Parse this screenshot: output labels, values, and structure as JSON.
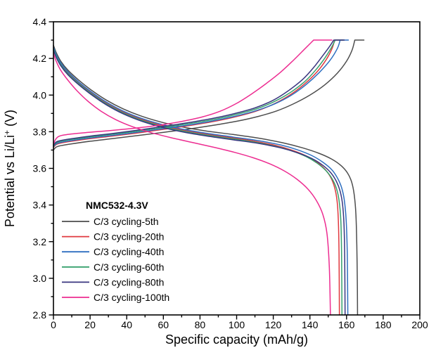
{
  "chart_data": {
    "type": "line",
    "legend_title": "NMC532-4.3V",
    "xlabel": "Specific capacity (mAh/g)",
    "ylabel": "Potential vs Li/Li⁺ (V)",
    "ylabel_parts": {
      "prefix": "Potential vs Li/Li",
      "sup": "+",
      "suffix": " (V)"
    },
    "xlim": [
      0,
      200
    ],
    "ylim": [
      2.8,
      4.4
    ],
    "x_major_ticks": [
      0,
      20,
      40,
      60,
      80,
      100,
      120,
      140,
      160,
      180,
      200
    ],
    "x_tick_labels": [
      "0",
      "20",
      "40",
      "60",
      "80",
      "100",
      "120",
      "140",
      "160",
      "180",
      "200"
    ],
    "x_minor_step": 10,
    "y_major_ticks": [
      2.8,
      3.0,
      3.2,
      3.4,
      3.6,
      3.8,
      4.0,
      4.2,
      4.4
    ],
    "y_tick_labels": [
      "2.8",
      "3.0",
      "3.2",
      "3.4",
      "3.6",
      "3.8",
      "4.0",
      "4.2",
      "4.4"
    ],
    "y_minor_step": 0.1,
    "grid": false,
    "legend_position": "lower-left",
    "voltage_cutoffs_V": [
      2.8,
      4.3
    ],
    "series": [
      {
        "name": "C/3 cycling-5th",
        "color": "#4d4d4d",
        "charge_mAh_g_V": [
          [
            0,
            3.7
          ],
          [
            1.5,
            3.716
          ],
          [
            4,
            3.724
          ],
          [
            10,
            3.734
          ],
          [
            20,
            3.748
          ],
          [
            32,
            3.762
          ],
          [
            45,
            3.778
          ],
          [
            58,
            3.794
          ],
          [
            72,
            3.812
          ],
          [
            86,
            3.833
          ],
          [
            100,
            3.857
          ],
          [
            112,
            3.884
          ],
          [
            122,
            3.914
          ],
          [
            131,
            3.952
          ],
          [
            140,
            4.0
          ],
          [
            148,
            4.055
          ],
          [
            155,
            4.12
          ],
          [
            160,
            4.185
          ],
          [
            163,
            4.245
          ],
          [
            164.5,
            4.3
          ],
          [
            169.5,
            4.3
          ]
        ],
        "discharge_mAh_g_V": [
          [
            0,
            4.272
          ],
          [
            1.5,
            4.232
          ],
          [
            4,
            4.185
          ],
          [
            8,
            4.135
          ],
          [
            14,
            4.08
          ],
          [
            21,
            4.025
          ],
          [
            29,
            3.972
          ],
          [
            38,
            3.925
          ],
          [
            48,
            3.885
          ],
          [
            59,
            3.852
          ],
          [
            71,
            3.825
          ],
          [
            84,
            3.803
          ],
          [
            98,
            3.785
          ],
          [
            112,
            3.765
          ],
          [
            125,
            3.74
          ],
          [
            136,
            3.712
          ],
          [
            145,
            3.682
          ],
          [
            152,
            3.65
          ],
          [
            157,
            3.615
          ],
          [
            160.5,
            3.575
          ],
          [
            162.8,
            3.525
          ],
          [
            164.2,
            3.455
          ],
          [
            165.1,
            3.35
          ],
          [
            165.6,
            3.18
          ],
          [
            165.9,
            2.96
          ],
          [
            166,
            2.8
          ]
        ]
      },
      {
        "name": "C/3 cycling-20th",
        "color": "#e0393f",
        "charge_mAh_g_V": [
          [
            0,
            3.714
          ],
          [
            1.5,
            3.73
          ],
          [
            4,
            3.738
          ],
          [
            10,
            3.748
          ],
          [
            20,
            3.762
          ],
          [
            32,
            3.776
          ],
          [
            45,
            3.792
          ],
          [
            58,
            3.81
          ],
          [
            72,
            3.83
          ],
          [
            86,
            3.853
          ],
          [
            98,
            3.878
          ],
          [
            110,
            3.91
          ],
          [
            120,
            3.95
          ],
          [
            129,
            4.0
          ],
          [
            137,
            4.06
          ],
          [
            144,
            4.128
          ],
          [
            149,
            4.195
          ],
          [
            152,
            4.252
          ],
          [
            153.5,
            4.3
          ],
          [
            158,
            4.3
          ]
        ],
        "discharge_mAh_g_V": [
          [
            0,
            4.258
          ],
          [
            1.5,
            4.218
          ],
          [
            4,
            4.172
          ],
          [
            8,
            4.122
          ],
          [
            14,
            4.066
          ],
          [
            21,
            4.01
          ],
          [
            29,
            3.956
          ],
          [
            38,
            3.908
          ],
          [
            48,
            3.868
          ],
          [
            59,
            3.835
          ],
          [
            71,
            3.808
          ],
          [
            84,
            3.786
          ],
          [
            98,
            3.766
          ],
          [
            110,
            3.748
          ],
          [
            121,
            3.726
          ],
          [
            130,
            3.7
          ],
          [
            138,
            3.668
          ],
          [
            144,
            3.632
          ],
          [
            148.5,
            3.592
          ],
          [
            151.5,
            3.548
          ],
          [
            153.5,
            3.495
          ],
          [
            154.8,
            3.425
          ],
          [
            155.5,
            3.32
          ],
          [
            155.9,
            3.13
          ],
          [
            156.1,
            2.8
          ]
        ]
      },
      {
        "name": "C/3 cycling-40th",
        "color": "#2e6fc0",
        "charge_mAh_g_V": [
          [
            0,
            3.718
          ],
          [
            1.5,
            3.734
          ],
          [
            4,
            3.742
          ],
          [
            10,
            3.752
          ],
          [
            20,
            3.766
          ],
          [
            32,
            3.78
          ],
          [
            45,
            3.796
          ],
          [
            58,
            3.814
          ],
          [
            72,
            3.834
          ],
          [
            86,
            3.857
          ],
          [
            98,
            3.882
          ],
          [
            110,
            3.913
          ],
          [
            121,
            3.953
          ],
          [
            130,
            4.0
          ],
          [
            138,
            4.058
          ],
          [
            145,
            4.122
          ],
          [
            151,
            4.19
          ],
          [
            155,
            4.255
          ],
          [
            156.5,
            4.3
          ],
          [
            161,
            4.3
          ]
        ],
        "discharge_mAh_g_V": [
          [
            0,
            4.262
          ],
          [
            1.5,
            4.222
          ],
          [
            4,
            4.176
          ],
          [
            8,
            4.126
          ],
          [
            14,
            4.07
          ],
          [
            21,
            4.015
          ],
          [
            29,
            3.961
          ],
          [
            38,
            3.913
          ],
          [
            48,
            3.873
          ],
          [
            59,
            3.84
          ],
          [
            71,
            3.813
          ],
          [
            84,
            3.791
          ],
          [
            98,
            3.771
          ],
          [
            112,
            3.751
          ],
          [
            124,
            3.728
          ],
          [
            133,
            3.702
          ],
          [
            141,
            3.67
          ],
          [
            147,
            3.634
          ],
          [
            152,
            3.592
          ],
          [
            155,
            3.548
          ],
          [
            157.3,
            3.495
          ],
          [
            158.8,
            3.425
          ],
          [
            159.8,
            3.315
          ],
          [
            160.4,
            3.13
          ],
          [
            160.7,
            2.8
          ]
        ]
      },
      {
        "name": "C/3 cycling-60th",
        "color": "#36a06d",
        "charge_mAh_g_V": [
          [
            0,
            3.722
          ],
          [
            1.5,
            3.74
          ],
          [
            4,
            3.748
          ],
          [
            10,
            3.758
          ],
          [
            20,
            3.772
          ],
          [
            32,
            3.786
          ],
          [
            45,
            3.802
          ],
          [
            58,
            3.82
          ],
          [
            72,
            3.841
          ],
          [
            86,
            3.864
          ],
          [
            98,
            3.89
          ],
          [
            110,
            3.922
          ],
          [
            120,
            3.962
          ],
          [
            129,
            4.012
          ],
          [
            137,
            4.072
          ],
          [
            143,
            4.135
          ],
          [
            148,
            4.2
          ],
          [
            151.5,
            4.255
          ],
          [
            153.8,
            4.3
          ],
          [
            158.3,
            4.3
          ]
        ],
        "discharge_mAh_g_V": [
          [
            0,
            4.252
          ],
          [
            1.5,
            4.212
          ],
          [
            4,
            4.166
          ],
          [
            8,
            4.116
          ],
          [
            14,
            4.06
          ],
          [
            21,
            4.005
          ],
          [
            29,
            3.951
          ],
          [
            38,
            3.903
          ],
          [
            48,
            3.863
          ],
          [
            59,
            3.83
          ],
          [
            71,
            3.803
          ],
          [
            84,
            3.781
          ],
          [
            98,
            3.761
          ],
          [
            110,
            3.743
          ],
          [
            121,
            3.721
          ],
          [
            130,
            3.696
          ],
          [
            138,
            3.664
          ],
          [
            144,
            3.628
          ],
          [
            149,
            3.585
          ],
          [
            152.3,
            3.54
          ],
          [
            154.6,
            3.487
          ],
          [
            156,
            3.418
          ],
          [
            156.9,
            3.31
          ],
          [
            157.3,
            3.12
          ],
          [
            157.5,
            2.8
          ]
        ]
      },
      {
        "name": "C/3 cycling-80th",
        "color": "#39357f",
        "charge_mAh_g_V": [
          [
            0,
            3.726
          ],
          [
            1.5,
            3.744
          ],
          [
            4,
            3.752
          ],
          [
            10,
            3.762
          ],
          [
            20,
            3.776
          ],
          [
            32,
            3.79
          ],
          [
            45,
            3.807
          ],
          [
            58,
            3.826
          ],
          [
            72,
            3.847
          ],
          [
            86,
            3.871
          ],
          [
            98,
            3.897
          ],
          [
            110,
            3.93
          ],
          [
            120,
            3.972
          ],
          [
            128,
            4.022
          ],
          [
            136,
            4.085
          ],
          [
            142,
            4.15
          ],
          [
            147,
            4.215
          ],
          [
            150.5,
            4.262
          ],
          [
            153,
            4.3
          ],
          [
            158.8,
            4.3
          ]
        ],
        "discharge_mAh_g_V": [
          [
            0,
            4.246
          ],
          [
            1.5,
            4.206
          ],
          [
            4,
            4.16
          ],
          [
            8,
            4.11
          ],
          [
            14,
            4.055
          ],
          [
            21,
            4.0
          ],
          [
            29,
            3.946
          ],
          [
            38,
            3.898
          ],
          [
            48,
            3.858
          ],
          [
            59,
            3.825
          ],
          [
            71,
            3.798
          ],
          [
            84,
            3.776
          ],
          [
            98,
            3.756
          ],
          [
            112,
            3.736
          ],
          [
            124,
            3.712
          ],
          [
            133,
            3.686
          ],
          [
            141,
            3.654
          ],
          [
            147,
            3.617
          ],
          [
            151.5,
            3.575
          ],
          [
            154.5,
            3.528
          ],
          [
            156.5,
            3.475
          ],
          [
            157.8,
            3.405
          ],
          [
            158.6,
            3.295
          ],
          [
            159,
            3.11
          ],
          [
            159.2,
            2.8
          ]
        ]
      },
      {
        "name": "C/3 cycling-100th",
        "color": "#ed2d91",
        "charge_mAh_g_V": [
          [
            0,
            3.73
          ],
          [
            1,
            3.755
          ],
          [
            2.5,
            3.772
          ],
          [
            5,
            3.781
          ],
          [
            12,
            3.79
          ],
          [
            22,
            3.799
          ],
          [
            34,
            3.809
          ],
          [
            46,
            3.821
          ],
          [
            58,
            3.836
          ],
          [
            70,
            3.856
          ],
          [
            81,
            3.88
          ],
          [
            91,
            3.912
          ],
          [
            100,
            3.955
          ],
          [
            108,
            4.005
          ],
          [
            116,
            4.062
          ],
          [
            124,
            4.125
          ],
          [
            131,
            4.19
          ],
          [
            137,
            4.25
          ],
          [
            140.5,
            4.285
          ],
          [
            142,
            4.3
          ],
          [
            152,
            4.3
          ]
        ],
        "discharge_mAh_g_V": [
          [
            0,
            4.228
          ],
          [
            1.5,
            4.185
          ],
          [
            4,
            4.135
          ],
          [
            8,
            4.08
          ],
          [
            13,
            4.022
          ],
          [
            19,
            3.965
          ],
          [
            26,
            3.912
          ],
          [
            34,
            3.866
          ],
          [
            43,
            3.828
          ],
          [
            53,
            3.796
          ],
          [
            64,
            3.768
          ],
          [
            76,
            3.741
          ],
          [
            88,
            3.714
          ],
          [
            99,
            3.687
          ],
          [
            109,
            3.658
          ],
          [
            118,
            3.625
          ],
          [
            126,
            3.586
          ],
          [
            133,
            3.54
          ],
          [
            139,
            3.486
          ],
          [
            143.5,
            3.425
          ],
          [
            147,
            3.35
          ],
          [
            149.3,
            3.245
          ],
          [
            150.6,
            3.06
          ],
          [
            151.2,
            2.8
          ]
        ]
      }
    ]
  }
}
